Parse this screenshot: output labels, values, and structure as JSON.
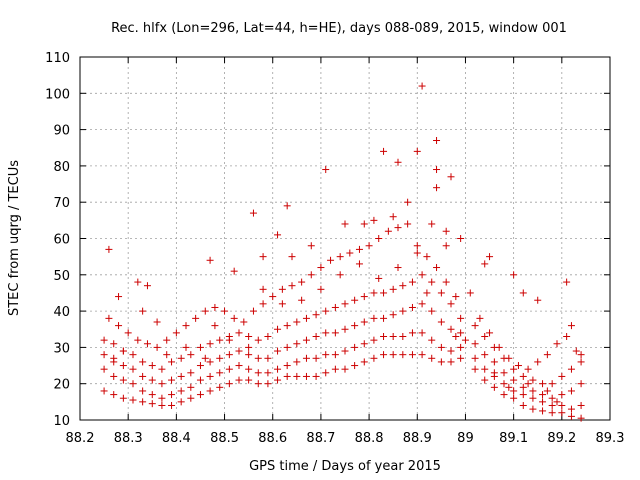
{
  "chart_data": {
    "type": "scatter",
    "title": "Rec. hlfx (Lon=296, Lat=44, h=HE), days 088-089, 2015, window 001",
    "xlabel": "GPS time / Days of year 2015",
    "ylabel": "STEC from uqrg / TECUs",
    "xlim": [
      88.2,
      89.3
    ],
    "ylim": [
      10,
      110
    ],
    "x_ticks": [
      "88.2",
      "88.3",
      "88.4",
      "88.5",
      "88.6",
      "88.7",
      "88.8",
      "88.9",
      "89",
      "89.1",
      "89.2",
      "89.3"
    ],
    "y_ticks": [
      "10",
      "20",
      "30",
      "40",
      "50",
      "60",
      "70",
      "80",
      "90",
      "100",
      "110"
    ],
    "grid": true,
    "marker": "+",
    "color": "#cc0000",
    "series": [
      {
        "points": [
          [
            88.25,
            18
          ],
          [
            88.27,
            17
          ],
          [
            88.29,
            16
          ],
          [
            88.31,
            15.5
          ],
          [
            88.33,
            15
          ],
          [
            88.35,
            14.5
          ],
          [
            88.37,
            14
          ],
          [
            88.39,
            14
          ],
          [
            88.41,
            15
          ],
          [
            88.43,
            16
          ],
          [
            88.45,
            17
          ],
          [
            88.47,
            18
          ],
          [
            88.49,
            19
          ],
          [
            88.51,
            20
          ],
          [
            88.53,
            21
          ],
          [
            88.55,
            21
          ],
          [
            88.57,
            20
          ],
          [
            88.59,
            20
          ],
          [
            88.61,
            21
          ],
          [
            88.63,
            22
          ],
          [
            88.65,
            22
          ],
          [
            88.67,
            22
          ],
          [
            88.69,
            22
          ],
          [
            88.71,
            23
          ],
          [
            88.73,
            24
          ],
          [
            88.75,
            24
          ],
          [
            88.77,
            25
          ],
          [
            88.79,
            26
          ],
          [
            88.81,
            27
          ],
          [
            88.83,
            28
          ],
          [
            88.85,
            28
          ],
          [
            88.87,
            28
          ],
          [
            88.89,
            28
          ],
          [
            88.91,
            28
          ],
          [
            88.93,
            27
          ],
          [
            88.95,
            26
          ],
          [
            88.97,
            26
          ],
          [
            88.99,
            27
          ],
          [
            89.02,
            24
          ],
          [
            89.04,
            21
          ],
          [
            89.06,
            19
          ],
          [
            89.08,
            17
          ],
          [
            89.1,
            16
          ],
          [
            89.12,
            14
          ],
          [
            89.14,
            13
          ],
          [
            89.16,
            12.5
          ],
          [
            89.18,
            12
          ],
          [
            89.2,
            12
          ],
          [
            89.22,
            11
          ],
          [
            89.24,
            10.5
          ],
          [
            88.25,
            24
          ],
          [
            88.27,
            22
          ],
          [
            88.29,
            21
          ],
          [
            88.31,
            20
          ],
          [
            88.33,
            18
          ],
          [
            88.35,
            17
          ],
          [
            88.37,
            16
          ],
          [
            88.39,
            17
          ],
          [
            88.41,
            18
          ],
          [
            88.43,
            19
          ],
          [
            88.45,
            21
          ],
          [
            88.47,
            22
          ],
          [
            88.49,
            23
          ],
          [
            88.51,
            24
          ],
          [
            88.53,
            25
          ],
          [
            88.55,
            24
          ],
          [
            88.57,
            23
          ],
          [
            88.59,
            23
          ],
          [
            88.61,
            24
          ],
          [
            88.63,
            25
          ],
          [
            88.65,
            26
          ],
          [
            88.67,
            27
          ],
          [
            88.69,
            27
          ],
          [
            88.71,
            28
          ],
          [
            88.73,
            28
          ],
          [
            88.75,
            29
          ],
          [
            88.77,
            30
          ],
          [
            88.79,
            31
          ],
          [
            88.81,
            32
          ],
          [
            88.83,
            33
          ],
          [
            88.85,
            33
          ],
          [
            88.87,
            33
          ],
          [
            88.89,
            34
          ],
          [
            88.91,
            34
          ],
          [
            88.93,
            32
          ],
          [
            88.95,
            30
          ],
          [
            88.97,
            29
          ],
          [
            88.99,
            30
          ],
          [
            89.02,
            27
          ],
          [
            89.04,
            24
          ],
          [
            89.06,
            22
          ],
          [
            89.08,
            20
          ],
          [
            89.1,
            18
          ],
          [
            89.12,
            17
          ],
          [
            89.14,
            16
          ],
          [
            89.16,
            15
          ],
          [
            89.18,
            14
          ],
          [
            89.2,
            14
          ],
          [
            89.22,
            13
          ],
          [
            89.24,
            14
          ],
          [
            88.25,
            28
          ],
          [
            88.27,
            27
          ],
          [
            88.29,
            25
          ],
          [
            88.31,
            24
          ],
          [
            88.33,
            22
          ],
          [
            88.35,
            21
          ],
          [
            88.37,
            20
          ],
          [
            88.39,
            21
          ],
          [
            88.41,
            22
          ],
          [
            88.43,
            23
          ],
          [
            88.45,
            25
          ],
          [
            88.47,
            26
          ],
          [
            88.49,
            27
          ],
          [
            88.51,
            28
          ],
          [
            88.53,
            29
          ],
          [
            88.55,
            28
          ],
          [
            88.57,
            27
          ],
          [
            88.59,
            27
          ],
          [
            88.61,
            29
          ],
          [
            88.63,
            30
          ],
          [
            88.65,
            31
          ],
          [
            88.67,
            32
          ],
          [
            88.69,
            33
          ],
          [
            88.71,
            34
          ],
          [
            88.73,
            34
          ],
          [
            88.75,
            35
          ],
          [
            88.77,
            36
          ],
          [
            88.79,
            37
          ],
          [
            88.81,
            38
          ],
          [
            88.83,
            38
          ],
          [
            88.85,
            39
          ],
          [
            88.87,
            40
          ],
          [
            88.89,
            41
          ],
          [
            88.91,
            42
          ],
          [
            88.93,
            40
          ],
          [
            88.95,
            37
          ],
          [
            88.97,
            35
          ],
          [
            88.99,
            34
          ],
          [
            89.02,
            31
          ],
          [
            89.04,
            28
          ],
          [
            89.06,
            26
          ],
          [
            89.08,
            23
          ],
          [
            89.1,
            21
          ],
          [
            89.12,
            19
          ],
          [
            89.14,
            18
          ],
          [
            89.16,
            17
          ],
          [
            89.18,
            16
          ],
          [
            89.2,
            17
          ],
          [
            89.22,
            18
          ],
          [
            89.24,
            20
          ],
          [
            88.25,
            32
          ],
          [
            88.27,
            31
          ],
          [
            88.29,
            29
          ],
          [
            88.31,
            28
          ],
          [
            88.33,
            26
          ],
          [
            88.35,
            25
          ],
          [
            88.37,
            24
          ],
          [
            88.39,
            26
          ],
          [
            88.41,
            27
          ],
          [
            88.43,
            28
          ],
          [
            88.45,
            30
          ],
          [
            88.47,
            31
          ],
          [
            88.49,
            32
          ],
          [
            88.51,
            33
          ],
          [
            88.53,
            34
          ],
          [
            88.55,
            33
          ],
          [
            88.57,
            32
          ],
          [
            88.59,
            33
          ],
          [
            88.61,
            35
          ],
          [
            88.63,
            36
          ],
          [
            88.65,
            37
          ],
          [
            88.67,
            38
          ],
          [
            88.69,
            39
          ],
          [
            88.71,
            40
          ],
          [
            88.73,
            41
          ],
          [
            88.75,
            42
          ],
          [
            88.77,
            43
          ],
          [
            88.79,
            44
          ],
          [
            88.81,
            45
          ],
          [
            88.83,
            45
          ],
          [
            88.85,
            46
          ],
          [
            88.87,
            47
          ],
          [
            88.89,
            48
          ],
          [
            88.91,
            50
          ],
          [
            88.93,
            48
          ],
          [
            88.95,
            45
          ],
          [
            88.97,
            42
          ],
          [
            88.99,
            38
          ],
          [
            89.02,
            36
          ],
          [
            89.04,
            33
          ],
          [
            89.06,
            30
          ],
          [
            89.08,
            27
          ],
          [
            89.1,
            24
          ],
          [
            89.12,
            22
          ],
          [
            89.14,
            21
          ],
          [
            89.16,
            20
          ],
          [
            89.18,
            20
          ],
          [
            89.2,
            22
          ],
          [
            89.22,
            24
          ],
          [
            89.24,
            26
          ],
          [
            88.26,
            38
          ],
          [
            88.28,
            36
          ],
          [
            88.3,
            34
          ],
          [
            88.32,
            32
          ],
          [
            88.34,
            31
          ],
          [
            88.36,
            30
          ],
          [
            88.38,
            32
          ],
          [
            88.4,
            34
          ],
          [
            88.42,
            36
          ],
          [
            88.44,
            38
          ],
          [
            88.46,
            40
          ],
          [
            88.48,
            41
          ],
          [
            88.5,
            40
          ],
          [
            88.52,
            38
          ],
          [
            88.54,
            37
          ],
          [
            88.56,
            40
          ],
          [
            88.58,
            42
          ],
          [
            88.6,
            44
          ],
          [
            88.62,
            46
          ],
          [
            88.64,
            47
          ],
          [
            88.66,
            48
          ],
          [
            88.68,
            50
          ],
          [
            88.7,
            52
          ],
          [
            88.72,
            54
          ],
          [
            88.74,
            55
          ],
          [
            88.76,
            56
          ],
          [
            88.78,
            57
          ],
          [
            88.8,
            58
          ],
          [
            88.82,
            60
          ],
          [
            88.84,
            62
          ],
          [
            88.86,
            63
          ],
          [
            88.88,
            64
          ],
          [
            88.9,
            58
          ],
          [
            88.92,
            55
          ],
          [
            88.94,
            52
          ],
          [
            88.96,
            48
          ],
          [
            88.98,
            44
          ],
          [
            89.01,
            45
          ],
          [
            89.03,
            38
          ],
          [
            89.05,
            34
          ],
          [
            89.07,
            30
          ],
          [
            89.09,
            27
          ],
          [
            89.11,
            25
          ],
          [
            89.13,
            24
          ],
          [
            89.15,
            26
          ],
          [
            89.17,
            28
          ],
          [
            89.19,
            31
          ],
          [
            89.21,
            33
          ],
          [
            89.23,
            29
          ],
          [
            88.26,
            57
          ],
          [
            88.28,
            44
          ],
          [
            88.32,
            48
          ],
          [
            88.34,
            47
          ],
          [
            88.47,
            54
          ],
          [
            88.52,
            51
          ],
          [
            88.56,
            67
          ],
          [
            88.58,
            55
          ],
          [
            88.61,
            61
          ],
          [
            88.63,
            69
          ],
          [
            88.64,
            55
          ],
          [
            88.68,
            58
          ],
          [
            88.71,
            79
          ],
          [
            88.75,
            64
          ],
          [
            88.79,
            64
          ],
          [
            88.81,
            65
          ],
          [
            88.83,
            84
          ],
          [
            88.85,
            66
          ],
          [
            88.86,
            81
          ],
          [
            88.88,
            70
          ],
          [
            88.9,
            84
          ],
          [
            88.91,
            102
          ],
          [
            88.93,
            64
          ],
          [
            88.94,
            87
          ],
          [
            88.94,
            79
          ],
          [
            88.94,
            74
          ],
          [
            88.96,
            62
          ],
          [
            88.97,
            77
          ],
          [
            88.99,
            60
          ],
          [
            89.04,
            53
          ],
          [
            89.05,
            55
          ],
          [
            89.1,
            50
          ],
          [
            89.12,
            45
          ],
          [
            89.15,
            43
          ],
          [
            89.21,
            48
          ],
          [
            88.27,
            26
          ],
          [
            88.29,
            29
          ],
          [
            88.33,
            40
          ],
          [
            88.36,
            37
          ],
          [
            88.38,
            28
          ],
          [
            88.42,
            30
          ],
          [
            88.46,
            27
          ],
          [
            88.48,
            36
          ],
          [
            88.51,
            32
          ],
          [
            88.55,
            30
          ],
          [
            88.58,
            46
          ],
          [
            88.62,
            42
          ],
          [
            88.66,
            43
          ],
          [
            88.7,
            46
          ],
          [
            88.74,
            50
          ],
          [
            88.78,
            53
          ],
          [
            88.82,
            49
          ],
          [
            88.86,
            52
          ],
          [
            88.9,
            56
          ],
          [
            88.92,
            45
          ],
          [
            88.96,
            58
          ],
          [
            88.98,
            33
          ],
          [
            89.0,
            32
          ],
          [
            89.06,
            23
          ],
          [
            89.09,
            19
          ],
          [
            89.13,
            20
          ],
          [
            89.17,
            18
          ],
          [
            89.19,
            15
          ],
          [
            89.22,
            36
          ],
          [
            89.24,
            28
          ]
        ]
      }
    ]
  }
}
